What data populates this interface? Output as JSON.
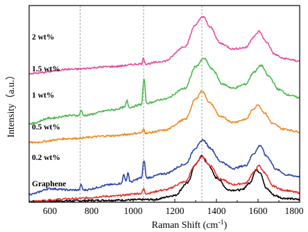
{
  "chart_data": {
    "type": "line",
    "xlabel": "Raman Shift (cm",
    "xlabel_superscript": "-1",
    "xlabel_close": ")",
    "ylabel": "Intensity（a.u.）",
    "xlim": [
      500,
      1800
    ],
    "x_ticks": [
      600,
      800,
      1000,
      1200,
      1400,
      1600,
      1800
    ],
    "y_ticks_shown": false,
    "reference_lines": [
      745,
      1050,
      1330
    ],
    "reference_line_style": "dashed-gray",
    "series": [
      {
        "name": "Graphene",
        "color": "#000000",
        "x": [
          510,
          700,
          900,
          1100,
          1200,
          1260,
          1300,
          1330,
          1360,
          1400,
          1460,
          1520,
          1560,
          1590,
          1610,
          1640,
          1680,
          1720,
          1800
        ],
        "y": [
          0.8,
          1.0,
          1.5,
          2.0,
          5,
          14,
          28,
          34,
          28,
          18,
          9,
          9,
          14,
          24,
          22,
          10,
          5,
          3,
          2
        ]
      },
      {
        "name": "0.2 wt%",
        "color": "#e8302a",
        "x": [
          510,
          700,
          900,
          1040,
          1050,
          1060,
          1150,
          1250,
          1300,
          1330,
          1370,
          1420,
          1480,
          1540,
          1580,
          1605,
          1630,
          1670,
          1720,
          1800
        ],
        "y": [
          0.5,
          2.5,
          4.5,
          6.5,
          10,
          6.5,
          9,
          15,
          28,
          34,
          27,
          17,
          13,
          14,
          22,
          27,
          22,
          12,
          9,
          7
        ]
      },
      {
        "name": "0.5 wt%",
        "color": "#2d46a8",
        "x": [
          510,
          600,
          700,
          740,
          750,
          760,
          900,
          945,
          955,
          965,
          975,
          985,
          1040,
          1052,
          1064,
          1150,
          1250,
          1300,
          1335,
          1370,
          1420,
          1480,
          1540,
          1580,
          1610,
          1640,
          1690,
          1740,
          1800
        ],
        "y": [
          6,
          10,
          9,
          9,
          13,
          9,
          13,
          14,
          21,
          15,
          22,
          15,
          18,
          31,
          18,
          21,
          28,
          40,
          46,
          40,
          30,
          25,
          27,
          36,
          42,
          34,
          24,
          20,
          19
        ]
      },
      {
        "name": "1 wt%",
        "color": "#f08a1f",
        "x": [
          510,
          700,
          900,
          1040,
          1050,
          1060,
          1150,
          1250,
          1300,
          1330,
          1370,
          1420,
          1480,
          1540,
          1580,
          1600,
          1630,
          1670,
          1720,
          1800
        ],
        "y": [
          44,
          47,
          49,
          51,
          54,
          51,
          53,
          61,
          76,
          82,
          73,
          63,
          59,
          61,
          69,
          72,
          66,
          58,
          54,
          52
        ]
      },
      {
        "name": "1.5 wt%",
        "color": "#4cb84a",
        "x": [
          510,
          600,
          700,
          740,
          750,
          760,
          900,
          960,
          970,
          980,
          1040,
          1052,
          1064,
          1150,
          1250,
          1300,
          1340,
          1380,
          1430,
          1480,
          1540,
          1580,
          1615,
          1650,
          1700,
          1750,
          1800
        ],
        "y": [
          58,
          62,
          64,
          64,
          68,
          64,
          68,
          70,
          75,
          70,
          72,
          91,
          73,
          76,
          84,
          100,
          106,
          98,
          87,
          84,
          87,
          96,
          101,
          93,
          83,
          79,
          77
        ]
      },
      {
        "name": "2 wt%",
        "color": "#e84c9c",
        "x": [
          510,
          700,
          900,
          1040,
          1050,
          1060,
          1150,
          1250,
          1300,
          1335,
          1370,
          1420,
          1480,
          1540,
          1580,
          1605,
          1640,
          1680,
          1720,
          1800
        ],
        "y": [
          95,
          98,
          100,
          102,
          106,
          102,
          104,
          115,
          131,
          137,
          129,
          117,
          113,
          114,
          122,
          126,
          118,
          109,
          106,
          104
        ]
      }
    ]
  },
  "labels": {
    "graphene": "Graphene",
    "wt02": "0.2 wt%",
    "wt05": "0.5 wt%",
    "wt1": "1 wt%",
    "wt15": "1.5 wt%",
    "wt2": "2 wt%"
  }
}
